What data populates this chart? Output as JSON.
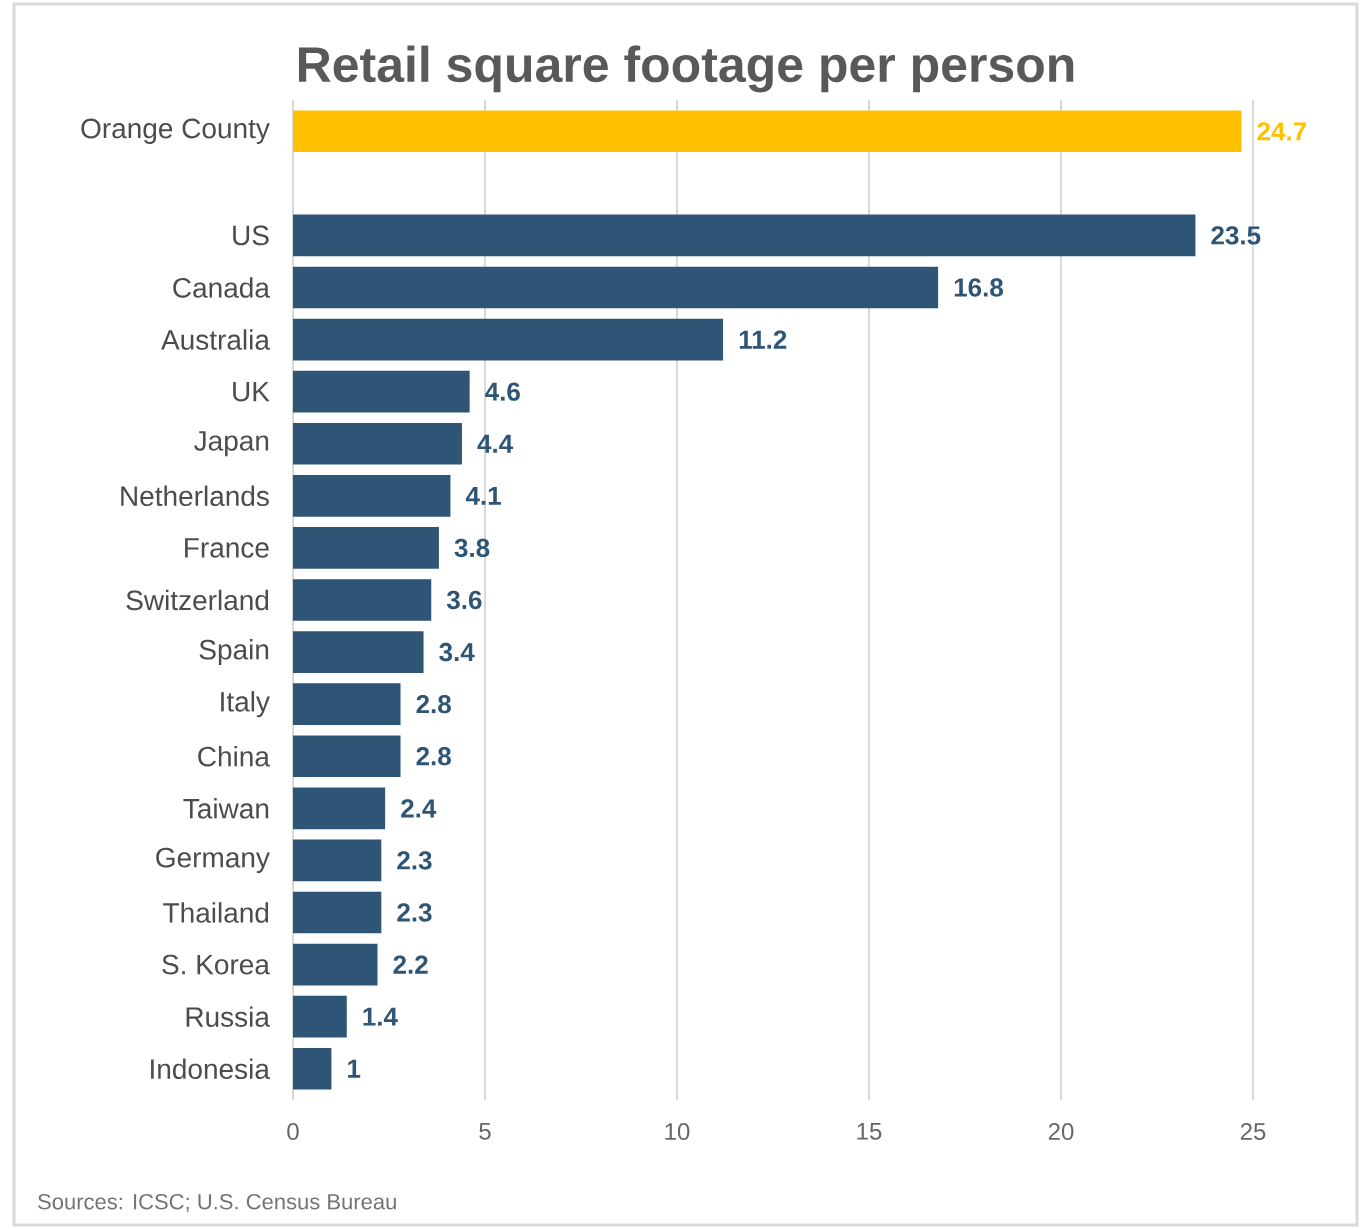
{
  "chart_data": {
    "type": "bar",
    "orientation": "horizontal",
    "title": "Retail square footage per person",
    "categories": [
      "Orange County",
      null,
      "US",
      "Canada",
      "Australia",
      "UK",
      "Japan",
      "Netherlands",
      "France",
      "Switzerland",
      "Spain",
      "Italy",
      "China",
      "Taiwan",
      "Germany",
      "Thailand",
      "S. Korea",
      "Russia",
      "Indonesia"
    ],
    "values": [
      24.7,
      null,
      23.5,
      16.8,
      11.2,
      4.6,
      4.4,
      4.1,
      3.8,
      3.6,
      3.4,
      2.8,
      2.8,
      2.4,
      2.3,
      2.3,
      2.2,
      1.4,
      1
    ],
    "colors": [
      "#ffc000",
      null,
      "#2f5576",
      "#2f5576",
      "#2f5576",
      "#2f5576",
      "#2f5576",
      "#2f5576",
      "#2f5576",
      "#2f5576",
      "#2f5576",
      "#2f5576",
      "#2f5576",
      "#2f5576",
      "#2f5576",
      "#2f5576",
      "#2f5576",
      "#2f5576",
      "#2f5576"
    ],
    "data_labels": true,
    "grid": "x",
    "xlim": [
      0,
      25
    ],
    "xticks": [
      0,
      5,
      10,
      15,
      20,
      25
    ],
    "annotations": [
      "Sources: ICSC; U.S. Census Bureau"
    ]
  }
}
